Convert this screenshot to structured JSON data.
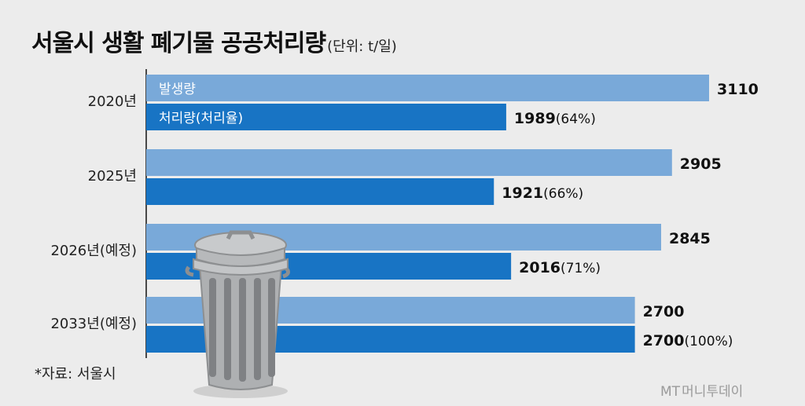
{
  "title": "서울시 생활 폐기물 공공처리량",
  "unit_label": "(단위: t/일)",
  "source": "*자료: 서울시",
  "watermark": {
    "mark": "MT",
    "text": "머니투데이"
  },
  "colors": {
    "generated": "#79a9d9",
    "processed": "#1874c4",
    "background": "#ececec"
  },
  "chart_data": {
    "type": "bar",
    "orientation": "horizontal",
    "title": "서울시 생활 폐기물 공공처리량",
    "unit": "(단위: t/일)",
    "categories": [
      "2020년",
      "2025년",
      "2026년(예정)",
      "2033년(예정)"
    ],
    "series": [
      {
        "name": "발생량",
        "values": [
          3110,
          2905,
          2845,
          2700
        ],
        "labels": [
          "3110",
          "2905",
          "2845",
          "2700"
        ]
      },
      {
        "name": "처리량(처리율)",
        "values": [
          1989,
          1921,
          2016,
          2700
        ],
        "labels": [
          "1989",
          "1921",
          "2016",
          "2700"
        ],
        "rates": [
          "(64%)",
          "(66%)",
          "(71%)",
          "(100%)"
        ]
      }
    ],
    "xlim": [
      0,
      3110
    ],
    "legend": "inside-bars",
    "grid": false
  }
}
